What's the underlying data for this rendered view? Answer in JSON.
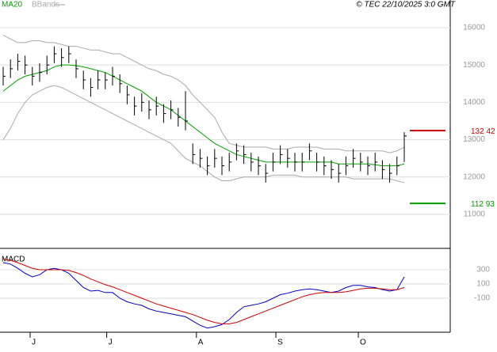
{
  "chart_data": {
    "type": "ohlc",
    "legend": [
      "MA20",
      "BBands"
    ],
    "credit": "© TEC 22/10/2025 3:0 GMT",
    "indicator_title": "MACD",
    "xticks": [
      {
        "value": 3.7,
        "label": "J"
      },
      {
        "value": 14.2,
        "label": "J"
      },
      {
        "value": 26.5,
        "label": "A"
      },
      {
        "value": 37.4,
        "label": "S"
      },
      {
        "value": 48.7,
        "label": "O"
      }
    ],
    "ylim": [
      10131,
      16741
    ],
    "yticks": [
      11000,
      12000,
      13000,
      14000,
      15000,
      16000
    ],
    "grid": true,
    "bar_color": "#000000",
    "high": [
      14950,
      15150,
      15300,
      15250,
      14950,
      15050,
      15250,
      15500,
      15450,
      15500,
      15150,
      14850,
      14650,
      14850,
      14800,
      14950,
      14750,
      14450,
      14150,
      14250,
      14050,
      14150,
      13950,
      14050,
      13850,
      14300,
      12900,
      12750,
      12550,
      12750,
      12550,
      12650,
      12900,
      12850,
      12650,
      12550,
      12350,
      12650,
      12850,
      12750,
      12650,
      12650,
      12900,
      12650,
      12550,
      12450,
      12350,
      12550,
      12750,
      12650,
      12550,
      12650,
      12450,
      12350,
      12550,
      13200
    ],
    "low": [
      14450,
      14650,
      14850,
      14750,
      14450,
      14550,
      14750,
      15050,
      14950,
      15050,
      14650,
      14350,
      14150,
      14350,
      14350,
      14450,
      14250,
      13950,
      13650,
      13750,
      13550,
      13650,
      13450,
      13550,
      13350,
      13250,
      12350,
      12250,
      12050,
      12250,
      12050,
      12150,
      12450,
      12350,
      12150,
      12050,
      11850,
      12150,
      12350,
      12250,
      12150,
      12150,
      12450,
      12150,
      12050,
      11950,
      11850,
      12050,
      12250,
      12150,
      12050,
      12150,
      11950,
      11850,
      12050,
      12400
    ],
    "close": [
      14700,
      14900,
      15100,
      15000,
      14700,
      14800,
      15000,
      15300,
      15200,
      15300,
      14900,
      14600,
      14400,
      14600,
      14600,
      14700,
      14500,
      14200,
      13900,
      14000,
      13800,
      13900,
      13700,
      13800,
      13600,
      13500,
      12600,
      12500,
      12300,
      12500,
      12300,
      12400,
      12700,
      12600,
      12400,
      12300,
      12100,
      12400,
      12600,
      12500,
      12400,
      12400,
      12700,
      12400,
      12300,
      12200,
      12100,
      12300,
      12500,
      12400,
      12300,
      12400,
      12200,
      12100,
      12300,
      13100
    ],
    "series": [
      {
        "name": "MA20",
        "color": "#00a000",
        "values": [
          14300,
          14450,
          14600,
          14700,
          14750,
          14800,
          14850,
          14950,
          15000,
          15000,
          14980,
          14950,
          14900,
          14850,
          14800,
          14700,
          14600,
          14500,
          14400,
          14300,
          14150,
          14000,
          13900,
          13800,
          13650,
          13500,
          13350,
          13200,
          13050,
          12900,
          12800,
          12700,
          12600,
          12550,
          12500,
          12450,
          12400,
          12400,
          12400,
          12400,
          12400,
          12400,
          12400,
          12400,
          12400,
          12400,
          12350,
          12350,
          12350,
          12350,
          12350,
          12330,
          12300,
          12300,
          12300,
          12350
        ]
      },
      {
        "name": "BBands",
        "color": "#aaaaaa",
        "values": [
          15800,
          15700,
          15600,
          15600,
          15650,
          15650,
          15600,
          15600,
          15550,
          15500,
          15500,
          15450,
          15400,
          15400,
          15350,
          15300,
          15300,
          15200,
          15100,
          15000,
          14900,
          14850,
          14750,
          14700,
          14600,
          14450,
          14200,
          14000,
          13800,
          13600,
          13200,
          12900,
          12850,
          12800,
          12800,
          12800,
          12800,
          12750,
          12750,
          12750,
          12800,
          12800,
          12800,
          12800,
          12750,
          12750,
          12750,
          12700,
          12700,
          12700,
          12700,
          12700,
          12700,
          12650,
          12700,
          12800
        ],
        "lower": [
          13000,
          13300,
          13700,
          14000,
          14200,
          14300,
          14400,
          14450,
          14400,
          14300,
          14200,
          14100,
          14000,
          13900,
          13800,
          13700,
          13600,
          13500,
          13400,
          13300,
          13200,
          13100,
          13000,
          12900,
          12700,
          12500,
          12400,
          12300,
          12150,
          12000,
          11900,
          11900,
          11950,
          12000,
          12000,
          12000,
          12000,
          12050,
          12050,
          12050,
          12050,
          12000,
          12000,
          12000,
          12000,
          12000,
          12000,
          12000,
          11950,
          11950,
          11950,
          11950,
          11950,
          11950,
          11900,
          11850
        ]
      }
    ],
    "levels": [
      {
        "value": 13242,
        "label": "132 42",
        "color": "#cc0000"
      },
      {
        "value": 11293,
        "label": "112 93",
        "color": "#009900"
      }
    ],
    "y2lim": [
      -578,
      578
    ],
    "y2ticks": [
      300,
      100,
      -100
    ],
    "macd": [
      {
        "color": "#0000cc",
        "values": [
          400,
          380,
          320,
          250,
          200,
          230,
          300,
          320,
          300,
          250,
          150,
          50,
          0,
          10,
          -20,
          -20,
          -100,
          -150,
          -180,
          -200,
          -250,
          -280,
          -300,
          -320,
          -340,
          -360,
          -420,
          -480,
          -520,
          -500,
          -470,
          -400,
          -300,
          -220,
          -200,
          -180,
          -150,
          -100,
          -50,
          -30,
          0,
          20,
          30,
          20,
          0,
          -20,
          0,
          50,
          80,
          80,
          60,
          50,
          20,
          0,
          20,
          200
        ]
      },
      {
        "color": "#cc0000",
        "values": [
          450,
          430,
          400,
          360,
          320,
          300,
          300,
          300,
          300,
          290,
          260,
          220,
          170,
          130,
          90,
          60,
          20,
          -20,
          -60,
          -100,
          -140,
          -180,
          -210,
          -240,
          -270,
          -300,
          -330,
          -370,
          -410,
          -440,
          -460,
          -460,
          -440,
          -400,
          -360,
          -320,
          -280,
          -240,
          -200,
          -160,
          -120,
          -80,
          -50,
          -30,
          -20,
          -20,
          -20,
          -10,
          10,
          30,
          40,
          40,
          30,
          20,
          20,
          50
        ]
      }
    ]
  }
}
